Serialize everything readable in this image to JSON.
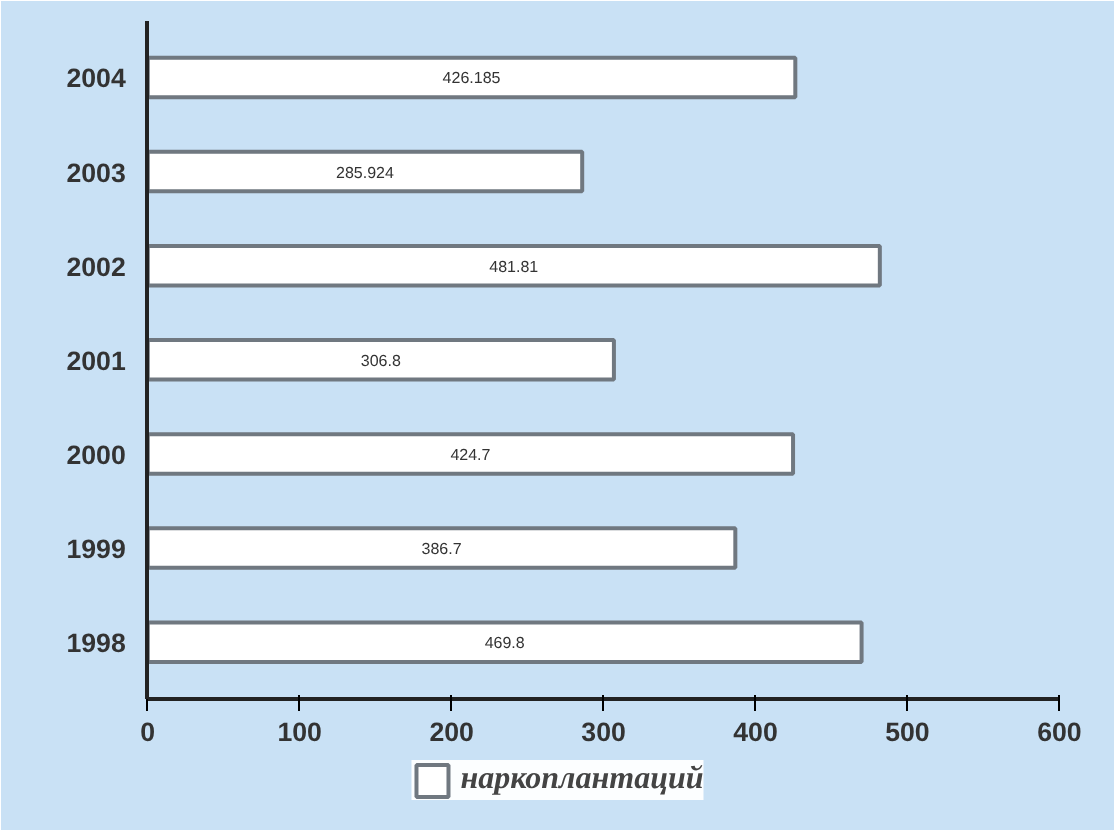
{
  "chart_data": {
    "type": "bar",
    "orientation": "horizontal",
    "categories": [
      "2004",
      "2003",
      "2002",
      "2001",
      "2000",
      "1999",
      "1998"
    ],
    "series": [
      {
        "name": "наркоплантаций",
        "color": "#ffffff",
        "values": [
          426.185,
          285.924,
          481.81,
          306.8,
          424.7,
          386.7,
          469.8
        ]
      }
    ],
    "xlim": [
      0,
      600
    ],
    "xticks": [
      0,
      100,
      200,
      300,
      400,
      500,
      600
    ],
    "data_labels": true,
    "grid": false,
    "legend": "bottom"
  }
}
